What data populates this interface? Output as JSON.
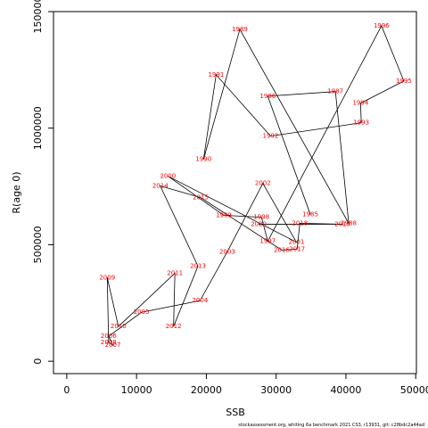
{
  "chart_data": {
    "type": "scatter",
    "x_label": "SSB",
    "y_label": "R(age 0)",
    "footer": "stockassessment.org, whiting 6a benchmark 2021 CS3, r13931, git: c28bdc2a44ad",
    "labels": [
      "1985",
      "1986",
      "1987",
      "1988",
      "1989",
      "1990",
      "1991",
      "1992",
      "1993",
      "1994",
      "1995",
      "1996",
      "1997",
      "1998",
      "1999",
      "2000",
      "2001",
      "2002",
      "2003",
      "2004",
      "2005",
      "2006",
      "2007",
      "2008",
      "2009",
      "2010",
      "2011",
      "2012",
      "2013",
      "2014",
      "2015",
      "2016",
      "2017",
      "2018",
      "2019",
      "2020"
    ],
    "x": [
      34900,
      28800,
      38500,
      40400,
      24800,
      19600,
      21400,
      29200,
      42200,
      42100,
      48300,
      45100,
      28800,
      27900,
      22500,
      14500,
      32900,
      28100,
      23000,
      19100,
      10700,
      6000,
      6600,
      6000,
      5800,
      7400,
      15500,
      15300,
      18800,
      13400,
      19200,
      30800,
      33000,
      33400,
      39500,
      27500
    ],
    "series": [
      {
        "color": "#ff0000",
        "line_color": "#000000",
        "values": [
          630000,
          1137000,
          1157000,
          592000,
          1424000,
          866000,
          1229000,
          966000,
          1023000,
          1107000,
          1202000,
          1439000,
          515000,
          618000,
          626000,
          794000,
          511000,
          763000,
          470000,
          260000,
          210000,
          107000,
          69000,
          80000,
          359000,
          149000,
          378000,
          149000,
          408000,
          752000,
          702000,
          477000,
          481000,
          592000,
          588000,
          588000
        ]
      }
    ],
    "xlim": [
      -1900,
      50100
    ],
    "ylim": [
      -53000,
      1500000
    ],
    "xticks": [
      0,
      10000,
      20000,
      30000,
      40000,
      50000
    ],
    "yticks": [
      0,
      500000,
      1000000,
      1500000
    ]
  }
}
